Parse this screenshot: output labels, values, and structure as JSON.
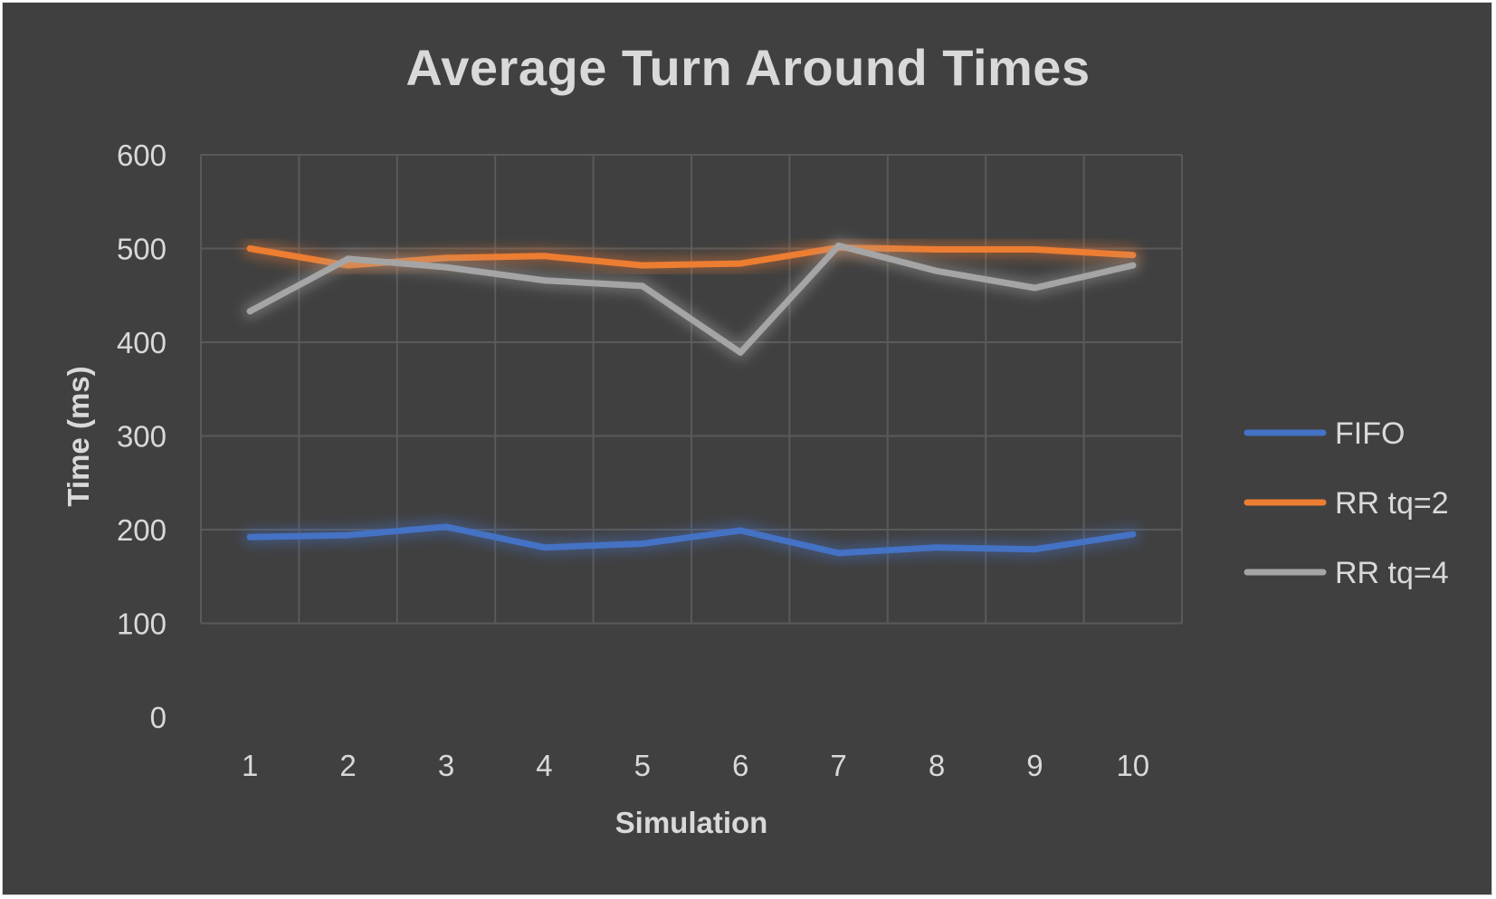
{
  "chart_data": {
    "type": "line",
    "title": "Average Turn Around Times",
    "xlabel": "Simulation",
    "ylabel": "Time (ms)",
    "categories": [
      "1",
      "2",
      "3",
      "4",
      "5",
      "6",
      "7",
      "8",
      "9",
      "10"
    ],
    "y_ticks": [
      "0",
      "100",
      "200",
      "300",
      "400",
      "500",
      "600"
    ],
    "ylim": [
      0,
      600
    ],
    "grid": true,
    "legend_position": "right",
    "series": [
      {
        "name": "FIFO",
        "color": "#4472c4",
        "values": [
          192,
          194,
          203,
          181,
          185,
          199,
          175,
          181,
          179,
          195
        ]
      },
      {
        "name": "RR tq=2",
        "color": "#ed7d31",
        "values": [
          500,
          482,
          490,
          492,
          482,
          484,
          501,
          499,
          499,
          493
        ]
      },
      {
        "name": "RR tq=4",
        "color": "#a5a5a5",
        "values": [
          433,
          489,
          480,
          466,
          460,
          389,
          503,
          476,
          458,
          482
        ]
      }
    ]
  }
}
